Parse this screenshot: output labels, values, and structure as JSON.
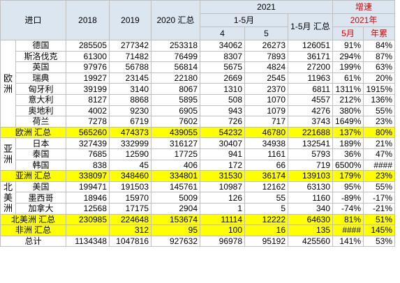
{
  "header": {
    "title": "进口",
    "years": [
      "2018",
      "2019",
      "2020 汇总"
    ],
    "group": "2021",
    "sub": "1-5月",
    "months": [
      "4",
      "5"
    ],
    "sum": "1-5月 汇总",
    "growth": "增速",
    "growth_year": "2021年",
    "growth_cols": [
      "5月",
      "年累"
    ]
  },
  "body": [
    {
      "region": "欧洲",
      "rows": [
        {
          "name": "德国",
          "cells": [
            "285505",
            "277342",
            "253318",
            "34062",
            "26273",
            "126051",
            "91%",
            "84%"
          ]
        },
        {
          "name": "斯洛伐克",
          "cells": [
            "61300",
            "71482",
            "76499",
            "8307",
            "7893",
            "36171",
            "294%",
            "87%"
          ]
        },
        {
          "name": "英国",
          "cells": [
            "97976",
            "56788",
            "56814",
            "5675",
            "4824",
            "27200",
            "199%",
            "63%"
          ]
        },
        {
          "name": "瑞典",
          "cells": [
            "19927",
            "23145",
            "22180",
            "2669",
            "2545",
            "11963",
            "61%",
            "20%"
          ]
        },
        {
          "name": "匈牙利",
          "cells": [
            "39199",
            "3140",
            "8067",
            "1310",
            "2370",
            "6811",
            "1311%",
            "1915%"
          ]
        },
        {
          "name": "意大利",
          "cells": [
            "8127",
            "8868",
            "5895",
            "508",
            "1070",
            "4557",
            "212%",
            "136%"
          ]
        },
        {
          "name": "奥地利",
          "cells": [
            "4002",
            "9230",
            "6905",
            "943",
            "1079",
            "4276",
            "380%",
            "55%"
          ]
        },
        {
          "name": "荷兰",
          "cells": [
            "7278",
            "6719",
            "7602",
            "726",
            "717",
            "3743",
            "1649%",
            "23%"
          ]
        }
      ]
    },
    {
      "name": "欧洲 汇总",
      "highlight": true,
      "cells": [
        "565260",
        "474373",
        "439055",
        "54232",
        "46780",
        "221688",
        "137%",
        "80%"
      ]
    },
    {
      "region": "亚洲",
      "rows": [
        {
          "name": "日本",
          "cells": [
            "327439",
            "332999",
            "316127",
            "30407",
            "34938",
            "132541",
            "189%",
            "21%"
          ]
        },
        {
          "name": "泰国",
          "cells": [
            "7685",
            "12590",
            "17725",
            "941",
            "1161",
            "5793",
            "36%",
            "47%"
          ]
        },
        {
          "name": "韩国",
          "cells": [
            "838",
            "45",
            "406",
            "172",
            "66",
            "719",
            "6500%",
            "####"
          ]
        }
      ]
    },
    {
      "name": "亚洲 汇总",
      "highlight": true,
      "cells": [
        "338097",
        "348460",
        "334801",
        "31530",
        "36174",
        "139103",
        "179%",
        "23%"
      ]
    },
    {
      "region": "北美洲",
      "rows": [
        {
          "name": "美国",
          "cells": [
            "199471",
            "191503",
            "145761",
            "10987",
            "12162",
            "63130",
            "95%",
            "55%"
          ]
        },
        {
          "name": "墨西哥",
          "cells": [
            "18946",
            "15970",
            "5009",
            "126",
            "55",
            "1160",
            "-89%",
            "-17%"
          ]
        },
        {
          "name": "加拿大",
          "cells": [
            "12568",
            "17175",
            "2904",
            "1",
            "5",
            "340",
            "-74%",
            "-21%"
          ]
        }
      ]
    },
    {
      "name": "北美洲 汇总",
      "highlight": true,
      "cells": [
        "230985",
        "224648",
        "153674",
        "11114",
        "12222",
        "64630",
        "81%",
        "51%"
      ]
    },
    {
      "name": "非洲 汇总",
      "highlight": true,
      "cells": [
        null,
        "312",
        "95",
        "100",
        "16",
        "135",
        "####",
        "145%"
      ]
    },
    {
      "name": "总计",
      "highlight": false,
      "cells": [
        "1134348",
        "1047816",
        "927632",
        "96978",
        "95192",
        "425560",
        "141%",
        "53%"
      ]
    }
  ]
}
